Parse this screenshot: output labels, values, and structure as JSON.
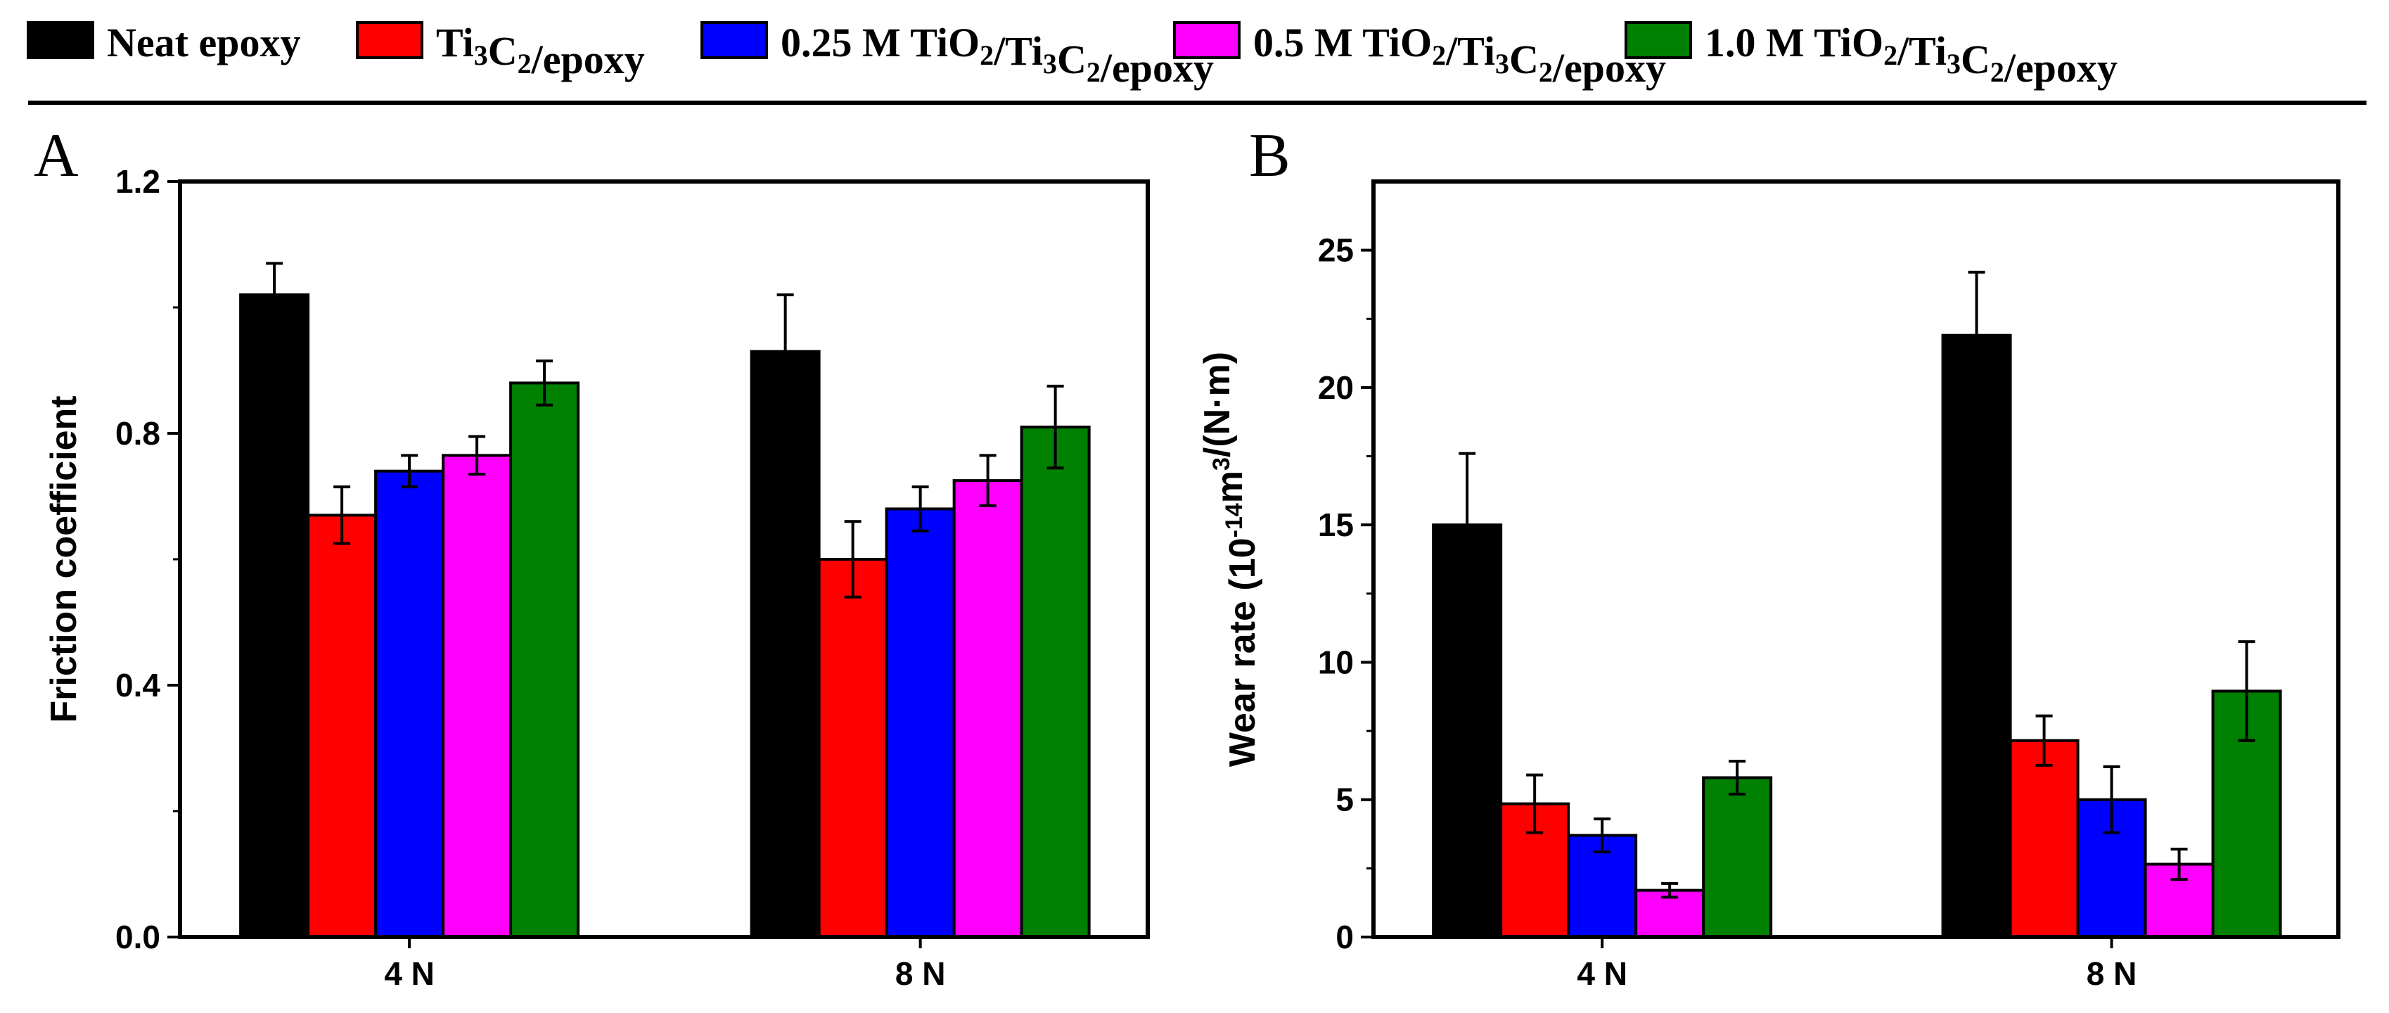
{
  "legend": [
    {
      "label": "Neat epoxy",
      "color": "#000000"
    },
    {
      "label": "Ti3C2/epoxy",
      "color": "#ff0000"
    },
    {
      "label": "0.25 M TiO2/Ti3C2/epoxy",
      "color": "#0000ff"
    },
    {
      "label": "0.5 M TiO2/Ti3C2/epoxy",
      "color": "#ff00ff"
    },
    {
      "label": "1.0 M TiO2/Ti3C2/epoxy",
      "color": "#008000"
    }
  ],
  "chart_data": [
    {
      "type": "bar",
      "panel": "A",
      "ylabel": "Friction coefficient",
      "categories": [
        "4 N",
        "8 N"
      ],
      "ylim": [
        0,
        1.2
      ],
      "yticks": [
        "0.0",
        "0.4",
        "0.8",
        "1.2"
      ],
      "series": [
        {
          "name": "Neat epoxy",
          "color": "#000000",
          "values": [
            1.02,
            0.93
          ],
          "errors": [
            0.05,
            0.09
          ]
        },
        {
          "name": "Ti3C2/epoxy",
          "color": "#ff0000",
          "values": [
            0.67,
            0.6
          ],
          "errors": [
            0.045,
            0.06
          ]
        },
        {
          "name": "0.25 M TiO2/Ti3C2/epoxy",
          "color": "#0000ff",
          "values": [
            0.74,
            0.68
          ],
          "errors": [
            0.025,
            0.035
          ]
        },
        {
          "name": "0.5 M TiO2/Ti3C2/epoxy",
          "color": "#ff00ff",
          "values": [
            0.765,
            0.725
          ],
          "errors": [
            0.03,
            0.04
          ]
        },
        {
          "name": "1.0 M TiO2/Ti3C2/epoxy",
          "color": "#008000",
          "values": [
            0.88,
            0.81
          ],
          "errors": [
            0.035,
            0.065
          ]
        }
      ]
    },
    {
      "type": "bar",
      "panel": "B",
      "ylabel": "Wear rate (10-14m3/(N·m)",
      "categories": [
        "4 N",
        "8 N"
      ],
      "ylim": [
        0,
        27.5
      ],
      "yticks": [
        "0",
        "5",
        "10",
        "15",
        "20",
        "25"
      ],
      "series": [
        {
          "name": "Neat epoxy",
          "color": "#000000",
          "values": [
            15.0,
            21.9
          ],
          "errors": [
            2.6,
            2.3
          ]
        },
        {
          "name": "Ti3C2/epoxy",
          "color": "#ff0000",
          "values": [
            4.85,
            7.15
          ],
          "errors": [
            1.05,
            0.9
          ]
        },
        {
          "name": "0.25 M TiO2/Ti3C2/epoxy",
          "color": "#0000ff",
          "values": [
            3.7,
            5.0
          ],
          "errors": [
            0.6,
            1.2
          ]
        },
        {
          "name": "0.5 M TiO2/Ti3C2/epoxy",
          "color": "#ff00ff",
          "values": [
            1.7,
            2.65
          ],
          "errors": [
            0.25,
            0.55
          ]
        },
        {
          "name": "1.0 M TiO2/Ti3C2/epoxy",
          "color": "#008000",
          "values": [
            5.8,
            8.95
          ],
          "errors": [
            0.6,
            1.8
          ]
        }
      ]
    }
  ]
}
